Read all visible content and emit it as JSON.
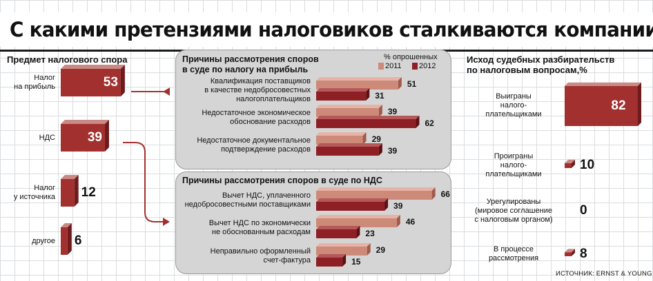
{
  "title": "С какими претензиями налоговиков сталкиваются компании",
  "source": "ИСТОЧНИК: ERNST & YOUNG",
  "colors": {
    "bar_front": "#a1302f",
    "bar_top": "#c98a84",
    "bar_side": "#6e1b1d",
    "bar_2011": "#cd8a78",
    "bar_2011_top": "#e6b3a6",
    "bar_2011_side": "#a05a4c",
    "bar_2012": "#8e1f24",
    "bar_2012_top": "#b4585a",
    "bar_2012_side": "#5c1014",
    "arrow": "#a1302f",
    "panel": "#d5d5d5"
  },
  "chart_data": [
    {
      "type": "bar",
      "title": "Предмет налогового спора",
      "categories": [
        "Налог\nна прибыль",
        "НДС",
        "Налог\nу источника",
        "другое"
      ],
      "values": [
        53,
        39,
        12,
        6
      ]
    },
    {
      "type": "bar",
      "title": "Причины рассмотрения споров\nв суде по налогу на прибыль",
      "legend_title": "% опрошенных",
      "categories": [
        "Квалификация поставщиков\nв качестве недобросовестных\nналогоплательщиков",
        "Недостаточное экономическое\nобоснование расходов",
        "Недостаточное документальное\nподтверждение расходов"
      ],
      "series": [
        {
          "name": "2011",
          "values": [
            51,
            39,
            29
          ]
        },
        {
          "name": "2012",
          "values": [
            31,
            62,
            39
          ]
        }
      ]
    },
    {
      "type": "bar",
      "title": "Причины рассмотрения споров в суде по НДС",
      "categories": [
        "Вычет НДС, уплаченного\nнедобросовестными поставщиками",
        "Вычет НДС по экономически\nне обоснованным расходам",
        "Неправильно оформленный\nсчет-фактура"
      ],
      "series": [
        {
          "name": "2011",
          "values": [
            66,
            46,
            29
          ]
        },
        {
          "name": "2012",
          "values": [
            39,
            23,
            15
          ]
        }
      ]
    },
    {
      "type": "bar",
      "title": "Исход судебных разбирательств\nпо налоговым вопросам,%",
      "categories": [
        "Выиграны\nналого-\nплательщиками",
        "Проиграны\nналого-\nплательщиками",
        "Урегулированы\n(мировое соглашение\nс налоговым органом)",
        "В процессе\nрассмотрения"
      ],
      "values": [
        82,
        10,
        0,
        8
      ]
    }
  ]
}
